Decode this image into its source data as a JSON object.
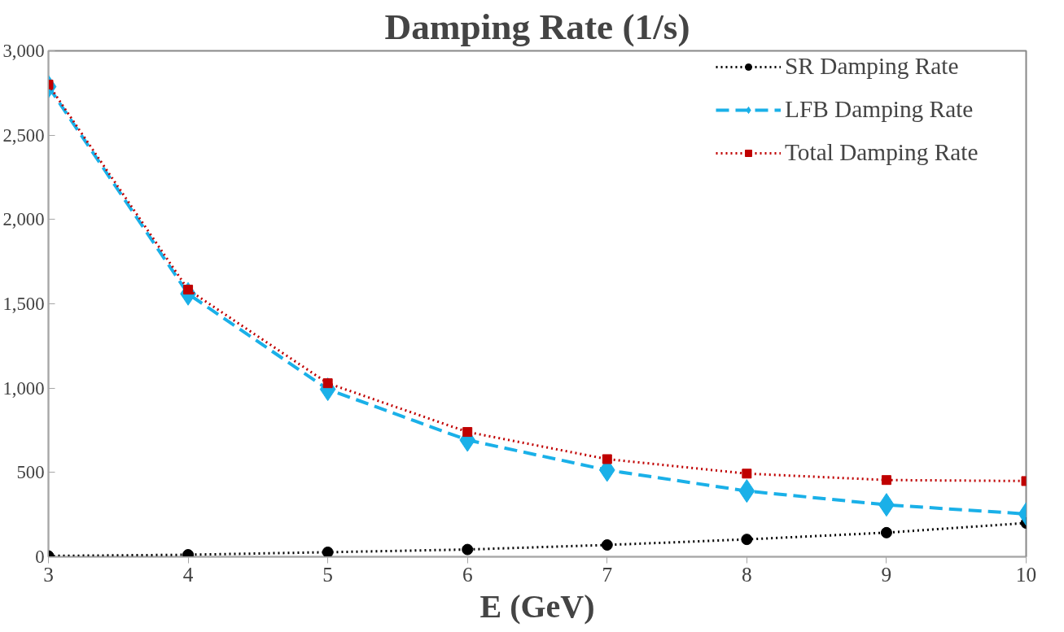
{
  "chart_data": {
    "type": "line",
    "title": "Damping Rate (1/s)",
    "xlabel": "E (GeV)",
    "x": [
      3,
      4,
      5,
      6,
      7,
      8,
      9,
      10
    ],
    "series": [
      {
        "name": "SR Damping Rate",
        "color": "#000000",
        "marker": "circle",
        "line_style": "dotted",
        "values": [
          5,
          12,
          27,
          43,
          70,
          103,
          143,
          200
        ]
      },
      {
        "name": "LFB Damping Rate",
        "color": "#1ab0e8",
        "marker": "diamond",
        "line_style": "dashed",
        "values": [
          2788,
          1559,
          993,
          692,
          514,
          390,
          308,
          254
        ]
      },
      {
        "name": "Total Damping Rate",
        "color": "#c00000",
        "marker": "square",
        "line_style": "dotted",
        "values": [
          2800,
          1584,
          1029,
          740,
          579,
          493,
          455,
          449
        ]
      }
    ],
    "xlim": [
      3,
      10
    ],
    "xticks": [
      3,
      4,
      5,
      6,
      7,
      8,
      9,
      10
    ],
    "ylim": [
      0,
      3000
    ],
    "yticks": [
      0,
      500,
      {
        "value": 1000,
        "label": "1,000"
      },
      {
        "value": 1500,
        "label": "1,500"
      },
      {
        "value": 2000,
        "label": "2,000"
      },
      {
        "value": 2500,
        "label": "2,500"
      },
      {
        "value": 3000,
        "label": "3,000"
      }
    ],
    "grid": false,
    "legend": "right"
  }
}
